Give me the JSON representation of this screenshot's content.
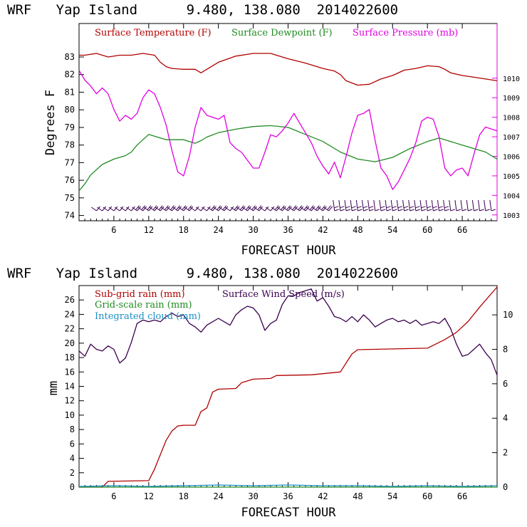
{
  "chart_data": [
    {
      "type": "line",
      "title": "WRF   Yap Island      9.480, 138.080  2014022600",
      "xlabel": "FORECAST HOUR",
      "ylabel": "Degrees F",
      "xlim": [
        0,
        72
      ],
      "ylim": [
        73.7,
        84.9
      ],
      "y2lim": [
        1002.7,
        1012.8
      ],
      "x_ticks": [
        6,
        12,
        18,
        24,
        30,
        36,
        42,
        48,
        54,
        60,
        66
      ],
      "y_ticks": [
        74,
        75,
        76,
        77,
        78,
        79,
        80,
        81,
        82,
        83
      ],
      "y2_ticks": [
        1003,
        1004,
        1005,
        1006,
        1007,
        1008,
        1009,
        1010
      ],
      "legend": [
        "Surface Temperature (F)",
        "Surface Dewpoint (F)",
        "Surface Pressure (mb)"
      ],
      "colors": {
        "temperature": "#b00000",
        "dewpoint": "#208a20",
        "pressure": "#e000e0",
        "wind_barbs": "#3a0050"
      },
      "series": [
        {
          "name": "Surface Temperature (F)",
          "axis": "left",
          "color": "#b00000",
          "x": [
            0,
            1,
            3,
            5,
            7,
            9,
            11,
            13,
            14,
            15,
            16,
            18,
            20,
            21,
            22,
            24,
            27,
            30,
            33,
            36,
            39,
            42,
            44,
            45,
            46,
            48,
            50,
            52,
            54,
            56,
            58,
            60,
            62,
            63,
            64,
            66,
            68,
            70,
            72
          ],
          "values": [
            83.1,
            83.1,
            83.2,
            83.0,
            83.1,
            83.1,
            83.2,
            83.1,
            82.7,
            82.45,
            82.35,
            82.3,
            82.3,
            82.1,
            82.3,
            82.7,
            83.05,
            83.2,
            83.2,
            82.9,
            82.65,
            82.35,
            82.2,
            82.0,
            81.65,
            81.4,
            81.45,
            81.75,
            81.95,
            82.25,
            82.35,
            82.5,
            82.45,
            82.3,
            82.1,
            81.95,
            81.85,
            81.75,
            81.65
          ]
        },
        {
          "name": "Surface Dewpoint (F)",
          "axis": "left",
          "color": "#208a20",
          "x": [
            0,
            1,
            2,
            4,
            6,
            8,
            9,
            10,
            11,
            12,
            13,
            15,
            18,
            20,
            21,
            22,
            24,
            27,
            30,
            33,
            36,
            39,
            42,
            45,
            48,
            51,
            54,
            57,
            60,
            62,
            63,
            64,
            66,
            68,
            70,
            72
          ],
          "values": [
            75.4,
            75.8,
            76.3,
            76.9,
            77.2,
            77.4,
            77.6,
            78.0,
            78.3,
            78.6,
            78.5,
            78.3,
            78.3,
            78.1,
            78.25,
            78.45,
            78.7,
            78.9,
            79.05,
            79.1,
            79.0,
            78.6,
            78.2,
            77.6,
            77.2,
            77.05,
            77.3,
            77.8,
            78.2,
            78.4,
            78.3,
            78.2,
            78.0,
            77.8,
            77.6,
            77.2
          ]
        },
        {
          "name": "Surface Pressure (mb)",
          "axis": "right",
          "color": "#e000e0",
          "x": [
            0,
            1,
            2,
            3,
            4,
            5,
            6,
            7,
            8,
            9,
            10,
            11,
            12,
            13,
            14,
            15,
            16,
            17,
            18,
            19,
            20,
            21,
            22,
            23,
            24,
            25,
            26,
            27,
            28,
            29,
            30,
            31,
            32,
            33,
            34,
            35,
            36,
            37,
            38,
            39,
            40,
            41,
            42,
            43,
            44,
            45,
            46,
            47,
            48,
            49,
            50,
            51,
            52,
            53,
            54,
            55,
            56,
            57,
            58,
            59,
            60,
            61,
            62,
            63,
            64,
            65,
            66,
            67,
            68,
            69,
            70,
            71,
            72
          ],
          "values": [
            1010.4,
            1009.9,
            1009.6,
            1009.2,
            1009.5,
            1009.2,
            1008.4,
            1007.8,
            1008.1,
            1007.9,
            1008.2,
            1009.0,
            1009.4,
            1009.2,
            1008.5,
            1007.6,
            1006.3,
            1005.2,
            1005.0,
            1006.0,
            1007.5,
            1008.5,
            1008.1,
            1008.0,
            1007.9,
            1008.1,
            1006.7,
            1006.4,
            1006.2,
            1005.8,
            1005.4,
            1005.4,
            1006.2,
            1007.1,
            1007.0,
            1007.3,
            1007.7,
            1008.2,
            1007.7,
            1007.2,
            1006.7,
            1006.0,
            1005.5,
            1005.1,
            1005.7,
            1004.9,
            1006.0,
            1007.2,
            1008.1,
            1008.2,
            1008.4,
            1006.8,
            1005.4,
            1005.0,
            1004.3,
            1004.7,
            1005.3,
            1005.9,
            1006.7,
            1007.8,
            1008.0,
            1007.9,
            1007.0,
            1005.4,
            1005.0,
            1005.3,
            1005.4,
            1005.0,
            1006.1,
            1007.1,
            1007.5,
            1007.4,
            1007.3
          ]
        }
      ]
    },
    {
      "type": "line",
      "title": "WRF   Yap Island      9.480, 138.080  2014022600",
      "xlabel": "FORECAST HOUR",
      "ylabel": "mm",
      "xlim": [
        0,
        72
      ],
      "ylim": [
        0,
        28
      ],
      "y2lim": [
        0,
        11.7
      ],
      "x_ticks": [
        6,
        12,
        18,
        24,
        30,
        36,
        42,
        48,
        54,
        60,
        66
      ],
      "y_ticks": [
        0,
        2,
        4,
        6,
        8,
        10,
        12,
        14,
        16,
        18,
        20,
        22,
        24,
        26
      ],
      "y2_ticks": [
        0,
        2,
        4,
        6,
        8,
        10
      ],
      "legend": [
        "Sub-grid rain (mm)",
        "Grid-scale rain (mm)",
        "Integrated cloud (mm)",
        "Surface Wind Speed (m/s)"
      ],
      "series": [
        {
          "name": "Sub-grid rain (mm)",
          "axis": "left",
          "color": "#b00000",
          "x": [
            0,
            4,
            5,
            12,
            13,
            14,
            15,
            16,
            17,
            18,
            20,
            21,
            22,
            23,
            24,
            27,
            28,
            30,
            33,
            34,
            40,
            45,
            47,
            48,
            60,
            63,
            65,
            67,
            69,
            72
          ],
          "values": [
            0,
            0,
            0.8,
            0.9,
            2.5,
            4.5,
            6.5,
            7.8,
            8.5,
            8.6,
            8.6,
            10.5,
            11.0,
            13.2,
            13.6,
            13.7,
            14.5,
            15.0,
            15.1,
            15.5,
            15.6,
            16.0,
            18.5,
            19.1,
            19.3,
            20.5,
            21.5,
            23.0,
            25.0,
            27.8
          ]
        },
        {
          "name": "Grid-scale rain (mm)",
          "axis": "left",
          "color": "#208a20",
          "x": [
            0,
            72
          ],
          "values": [
            0,
            0
          ]
        },
        {
          "name": "Integrated cloud (mm)",
          "axis": "left",
          "color": "#1e90c8",
          "x": [
            0,
            6,
            12,
            18,
            24,
            30,
            36,
            42,
            48,
            54,
            60,
            66,
            72
          ],
          "values": [
            0.1,
            0.2,
            0.1,
            0.2,
            0.3,
            0.2,
            0.3,
            0.2,
            0.2,
            0.1,
            0.2,
            0.1,
            0.2
          ]
        },
        {
          "name": "Surface Wind Speed (m/s)",
          "axis": "right",
          "color": "#3a0050",
          "x": [
            0,
            1,
            2,
            3,
            4,
            5,
            6,
            7,
            8,
            9,
            10,
            11,
            12,
            13,
            14,
            15,
            16,
            17,
            18,
            19,
            20,
            21,
            22,
            23,
            24,
            25,
            26,
            27,
            28,
            29,
            30,
            31,
            32,
            33,
            34,
            35,
            36,
            37,
            38,
            39,
            40,
            41,
            42,
            43,
            44,
            45,
            46,
            47,
            48,
            49,
            50,
            51,
            52,
            53,
            54,
            55,
            56,
            57,
            58,
            59,
            60,
            61,
            62,
            63,
            64,
            65,
            66,
            67,
            68,
            69,
            70,
            71,
            72
          ],
          "values": [
            7.9,
            7.6,
            8.3,
            8.0,
            7.9,
            8.2,
            8.0,
            7.2,
            7.5,
            8.4,
            9.5,
            9.7,
            9.6,
            9.7,
            9.6,
            9.9,
            10.1,
            9.9,
            10.0,
            9.5,
            9.3,
            9.0,
            9.4,
            9.6,
            9.8,
            9.6,
            9.4,
            10.0,
            10.3,
            10.5,
            10.4,
            10.0,
            9.1,
            9.5,
            9.7,
            10.6,
            11.1,
            11.1,
            11.3,
            11.4,
            11.5,
            10.8,
            11.0,
            10.5,
            9.9,
            9.8,
            9.6,
            9.9,
            9.6,
            10.0,
            9.7,
            9.3,
            9.5,
            9.7,
            9.8,
            9.6,
            9.7,
            9.5,
            9.7,
            9.4,
            9.5,
            9.6,
            9.5,
            9.8,
            9.2,
            8.3,
            7.6,
            7.7,
            8.0,
            8.3,
            7.8,
            7.4,
            6.5
          ]
        }
      ]
    }
  ],
  "wind_barbs": {
    "hours": [
      3,
      4,
      5,
      6,
      7,
      8,
      9,
      10,
      11,
      12,
      13,
      14,
      15,
      16,
      17,
      18,
      19,
      20,
      21,
      22,
      23,
      24,
      25,
      26,
      27,
      28,
      29,
      30,
      31,
      32,
      33,
      34,
      35,
      36,
      37,
      38,
      39,
      40,
      41,
      42,
      43,
      44,
      45,
      46,
      47,
      48,
      49,
      50,
      51,
      52,
      53,
      54,
      55,
      56,
      57,
      58,
      59,
      60,
      61,
      62,
      63,
      64,
      65,
      66,
      67,
      68,
      69,
      70,
      71
    ],
    "speed_ms": [
      8,
      8,
      8,
      8,
      7,
      8,
      9,
      10,
      10,
      10,
      10,
      10,
      10,
      10,
      10,
      10,
      10,
      9,
      9,
      9,
      10,
      10,
      10,
      9,
      10,
      10,
      11,
      10,
      10,
      9,
      9,
      10,
      11,
      11,
      11,
      11,
      11,
      12,
      11,
      11,
      11,
      10,
      10,
      10,
      10,
      10,
      10,
      10,
      9,
      10,
      10,
      10,
      10,
      10,
      10,
      10,
      10,
      10,
      10,
      10,
      10,
      9,
      8,
      8,
      8,
      8,
      8,
      8,
      7
    ]
  }
}
